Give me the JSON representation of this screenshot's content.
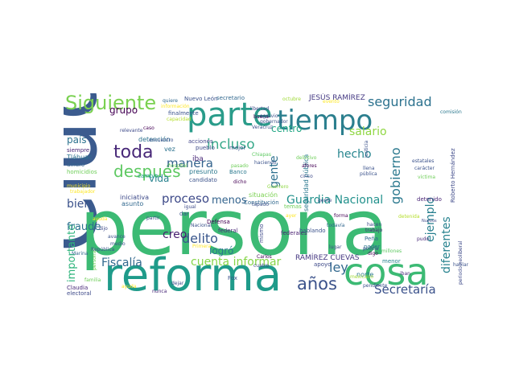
{
  "wordcloud": {
    "words": [
      {
        "text": "Ciudad",
        "color": "#3b5b8e"
      },
      {
        "text": "persona",
        "color": "#3cba74"
      },
      {
        "text": "reforma",
        "color": "#1f9b8a"
      },
      {
        "text": "parte",
        "color": "#2a9c8a"
      },
      {
        "text": "tiempo",
        "color": "#2b7f8e"
      },
      {
        "text": "cosa",
        "color": "#3cba74"
      },
      {
        "text": "Siguiente",
        "color": "#7ad151"
      },
      {
        "text": "toda",
        "color": "#482878"
      },
      {
        "text": "después",
        "color": "#5ec962"
      },
      {
        "text": "años",
        "color": "#3b528b"
      },
      {
        "text": "seguridad",
        "color": "#2c728e"
      },
      {
        "text": "incluso",
        "color": "#38a98a"
      },
      {
        "text": "manera",
        "color": "#33638d"
      },
      {
        "text": "Secretaría",
        "color": "#3b528b"
      },
      {
        "text": "Guardia Nacional",
        "color": "#21918c"
      },
      {
        "text": "delito",
        "color": "#39568c"
      },
      {
        "text": "cuenta informar",
        "color": "#86d549"
      },
      {
        "text": "ley",
        "color": "#31688e"
      },
      {
        "text": "Fiscalía",
        "color": "#31688e"
      },
      {
        "text": "bien",
        "color": "#3b528b"
      },
      {
        "text": "gobierno",
        "color": "#2a788e"
      },
      {
        "text": "proceso",
        "color": "#3e4a89"
      },
      {
        "text": "ejemplo",
        "color": "#277f8e"
      },
      {
        "text": "diferentes",
        "color": "#26828e"
      },
      {
        "text": "importante",
        "color": "#2fb47c"
      },
      {
        "text": "fraude",
        "color": "#2c728e"
      },
      {
        "text": "salario",
        "color": "#90d743"
      },
      {
        "text": "hecho",
        "color": "#25848e"
      },
      {
        "text": "gente",
        "color": "#2d708e"
      },
      {
        "text": "centro",
        "color": "#22a785"
      },
      {
        "text": "grupo",
        "color": "#440154"
      },
      {
        "text": "país",
        "color": "#2c728e"
      },
      {
        "text": "vida",
        "color": "#26828e"
      },
      {
        "text": "creo",
        "color": "#481f70"
      },
      {
        "text": "logró",
        "color": "#2a788e"
      },
      {
        "text": "menos",
        "color": "#33638d"
      },
      {
        "text": "JESÚS RAMÍREZ",
        "color": "#443983"
      },
      {
        "text": "RAMÍREZ CUEVAS",
        "color": "#453781"
      },
      {
        "text": "Nuevo León",
        "color": "#3b528b"
      },
      {
        "text": "secretario",
        "color": "#31688e"
      },
      {
        "text": "libertad",
        "color": "#3e4a89"
      },
      {
        "text": "octubre",
        "color": "#a0da39"
      },
      {
        "text": "evento",
        "color": "#fde725"
      },
      {
        "text": "comisión",
        "color": "#2a788e"
      },
      {
        "text": "quiere",
        "color": "#31688e"
      },
      {
        "text": "información",
        "color": "#fde725"
      },
      {
        "text": "finalmente",
        "color": "#3b528b"
      },
      {
        "text": "capacidad",
        "color": "#b5de2b"
      },
      {
        "text": "caso",
        "color": "#440154"
      },
      {
        "text": "relevante",
        "color": "#3e4a89"
      },
      {
        "text": "siempre",
        "color": "#482475"
      },
      {
        "text": "Tláhuac",
        "color": "#2c728e"
      },
      {
        "text": "dinero",
        "color": "#33638d"
      },
      {
        "text": "homicidios",
        "color": "#6ece58"
      },
      {
        "text": "municipio",
        "color": "#fde725"
      },
      {
        "text": "trabajador",
        "color": "#fde725"
      },
      {
        "text": "detención",
        "color": "#2c728e"
      },
      {
        "text": "acciones",
        "color": "#414487"
      },
      {
        "text": "pueblo",
        "color": "#3e4a89"
      },
      {
        "text": "presunto",
        "color": "#2a788e"
      },
      {
        "text": "candidato",
        "color": "#3b528b"
      },
      {
        "text": "cambio",
        "color": "#1f9e89"
      },
      {
        "text": "iba",
        "color": "#482878"
      },
      {
        "text": "mejor",
        "color": "#3b528b"
      },
      {
        "text": "Banco",
        "color": "#2a788e"
      },
      {
        "text": "pasado",
        "color": "#6ece58"
      },
      {
        "text": "dicho",
        "color": "#440154"
      },
      {
        "text": "situación",
        "color": "#7ad151"
      },
      {
        "text": "Constitución",
        "color": "#31688e"
      },
      {
        "text": "temas",
        "color": "#6ece58"
      },
      {
        "text": "Guerrero",
        "color": "#8fd744"
      },
      {
        "text": "iniciativa",
        "color": "#3e4a89"
      },
      {
        "text": "asunto",
        "color": "#31688e"
      },
      {
        "text": "vez",
        "color": "#2c728e"
      },
      {
        "text": "buena",
        "color": "#440154"
      },
      {
        "text": "seguridad pública",
        "color": "#2a788e"
      },
      {
        "text": "detenido",
        "color": "#482475"
      },
      {
        "text": "Roberto Hernández",
        "color": "#3e4a89"
      },
      {
        "text": "estatales",
        "color": "#3b528b"
      },
      {
        "text": "carácter",
        "color": "#3b528b"
      },
      {
        "text": "víctima",
        "color": "#6ece58"
      },
      {
        "text": "Peña",
        "color": "#31688e"
      },
      {
        "text": "poder",
        "color": "#2a788e"
      },
      {
        "text": "apoyo",
        "color": "#3e4a89"
      },
      {
        "text": "norte",
        "color": "#2a788e"
      },
      {
        "text": "menor",
        "color": "#26828e"
      },
      {
        "text": "federales",
        "color": "#481f70"
      },
      {
        "text": "federal",
        "color": "#482878"
      },
      {
        "text": "Defensa",
        "color": "#440154"
      },
      {
        "text": "mismo",
        "color": "#3e4a89"
      },
      {
        "text": "hablando",
        "color": "#3b528b"
      },
      {
        "text": "todavía",
        "color": "#31688e"
      },
      {
        "text": "hacen",
        "color": "#3e4a89"
      },
      {
        "text": "trabajo",
        "color": "#482878"
      },
      {
        "text": "millones",
        "color": "#5ec962"
      },
      {
        "text": "detenida",
        "color": "#b5de2b"
      },
      {
        "text": "Nuevos",
        "color": "#3e4a89"
      },
      {
        "text": "pudo",
        "color": "#482878"
      },
      {
        "text": "hablar",
        "color": "#3b528b"
      },
      {
        "text": "iban",
        "color": "#482878"
      },
      {
        "text": "Claudia",
        "color": "#482878"
      },
      {
        "text": "electoral",
        "color": "#3e4a89"
      },
      {
        "text": "Fox",
        "color": "#3b528b"
      },
      {
        "text": "igual",
        "color": "#3e4a89"
      },
      {
        "text": "dar",
        "color": "#3b528b"
      },
      {
        "text": "partir",
        "color": "#3e4a89"
      },
      {
        "text": "dijo",
        "color": "#3e4a89"
      },
      {
        "text": "Marina",
        "color": "#31688e"
      },
      {
        "text": "personal",
        "color": "#6ece58"
      },
      {
        "text": "ayuda",
        "color": "#fde725"
      },
      {
        "text": "nunca",
        "color": "#482878"
      },
      {
        "text": "dejar",
        "color": "#3e4a89"
      },
      {
        "text": "cuatro",
        "color": "#3e4a89"
      },
      {
        "text": "Carlos",
        "color": "#440154"
      },
      {
        "text": "pendiente",
        "color": "#3b528b"
      },
      {
        "text": "mexicano",
        "color": "#a0da39"
      },
      {
        "text": "periodo neoliberal",
        "color": "#3e4a89"
      },
      {
        "text": "forma",
        "color": "#440154"
      },
      {
        "text": "gobernador",
        "color": "#3b528b"
      },
      {
        "text": "agravio",
        "color": "#3b528b"
      },
      {
        "text": "Chiapas",
        "color": "#5ec962"
      },
      {
        "text": "haciendo",
        "color": "#3b528b"
      },
      {
        "text": "hospital",
        "color": "#6ece58"
      },
      {
        "text": "afores",
        "color": "#440154"
      },
      {
        "text": "Justicia",
        "color": "#3b528b"
      },
      {
        "text": "cinco",
        "color": "#3e4a89"
      },
      {
        "text": "pública",
        "color": "#3b528b"
      },
      {
        "text": "llena",
        "color": "#3b528b"
      },
      {
        "text": "policía",
        "color": "#3e4a89"
      },
      {
        "text": "digo",
        "color": "#440154"
      },
      {
        "text": "lugar",
        "color": "#3e4a89"
      },
      {
        "text": "ayer",
        "color": "#fde725"
      },
      {
        "text": "delictivo",
        "color": "#6ece58"
      },
      {
        "text": "gente",
        "color": "#3e4a89"
      },
      {
        "text": "República",
        "color": "#3b528b"
      },
      {
        "text": "Nacional",
        "color": "#3b528b"
      },
      {
        "text": "avance",
        "color": "#3b528b"
      },
      {
        "text": "familia",
        "color": "#6ece58"
      },
      {
        "text": "ayuda",
        "color": "#fde725"
      },
      {
        "text": "Primera",
        "color": "#fde725"
      },
      {
        "text": "medio",
        "color": "#3b528b"
      },
      {
        "text": "encuentro",
        "color": "#3b528b"
      },
      {
        "text": "tapado",
        "color": "#3b528b"
      },
      {
        "text": "Veracruz",
        "color": "#3b528b"
      }
    ]
  }
}
